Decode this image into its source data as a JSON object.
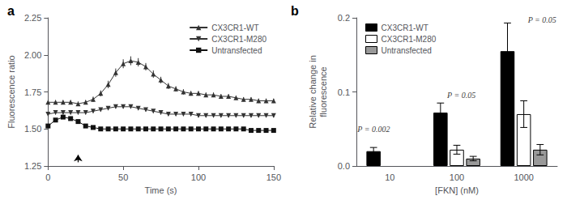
{
  "chart_data": [
    {
      "type": "line",
      "title": "a",
      "xlabel": "Time (s)",
      "ylabel": "Fluorescence ratio",
      "xlim": [
        0,
        150
      ],
      "xticks": [
        0,
        50,
        100,
        150
      ],
      "ylim": [
        1.25,
        2.25
      ],
      "yticks": [
        1.25,
        {
          "value": 1.5,
          "label": "1.50"
        },
        1.75,
        {
          "value": 2,
          "label": "2.00"
        },
        2.25
      ],
      "grid": false,
      "legend": "upper right",
      "arrow": {
        "x": 20,
        "y_start": 1.275,
        "y_end": 1.325
      },
      "x": [
        0,
        5,
        10,
        15,
        20,
        25,
        30,
        35,
        40,
        45,
        50,
        55,
        60,
        65,
        70,
        75,
        80,
        85,
        90,
        95,
        100,
        105,
        110,
        115,
        120,
        125,
        130,
        135,
        140,
        145,
        150
      ],
      "series": [
        {
          "name": "CX3CR1-WT",
          "color": "#333333",
          "marker": "triangle",
          "values": [
            1.68,
            1.68,
            1.68,
            1.68,
            1.67,
            1.68,
            1.7,
            1.74,
            1.8,
            1.88,
            1.94,
            1.96,
            1.95,
            1.92,
            1.87,
            1.83,
            1.79,
            1.77,
            1.75,
            1.74,
            1.74,
            1.73,
            1.73,
            1.72,
            1.72,
            1.71,
            1.7,
            1.7,
            1.69,
            1.69,
            1.69
          ],
          "errors": [
            0.015,
            0.015,
            0.015,
            0.015,
            0.015,
            0.015,
            0.018,
            0.02,
            0.025,
            0.028,
            0.03,
            0.03,
            0.028,
            0.025,
            0.025,
            0.022,
            0.02,
            0.018,
            0.018,
            0.016,
            0.016,
            0.016,
            0.016,
            0.015,
            0.015,
            0.015,
            0.015,
            0.015,
            0.015,
            0.015,
            0.015
          ]
        },
        {
          "name": "CX3CR1-M280",
          "color": "#333333",
          "marker": "triangle_down",
          "values": [
            1.6,
            1.61,
            1.61,
            1.61,
            1.61,
            1.61,
            1.62,
            1.63,
            1.64,
            1.65,
            1.65,
            1.65,
            1.64,
            1.63,
            1.62,
            1.61,
            1.6,
            1.6,
            1.6,
            1.6,
            1.59,
            1.59,
            1.59,
            1.59,
            1.59,
            1.59,
            1.59,
            1.59,
            1.59,
            1.59,
            1.59
          ],
          "errors": [
            0.012,
            0.012,
            0.012,
            0.012,
            0.012,
            0.012,
            0.012,
            0.012,
            0.012,
            0.012,
            0.012,
            0.012,
            0.012,
            0.012,
            0.012,
            0.012,
            0.012,
            0.012,
            0.012,
            0.012,
            0.012,
            0.012,
            0.012,
            0.012,
            0.012,
            0.012,
            0.012,
            0.012,
            0.012,
            0.012,
            0.012
          ]
        },
        {
          "name": "Untransfected",
          "color": "#111111",
          "marker": "square",
          "values": [
            1.52,
            1.56,
            1.58,
            1.57,
            1.55,
            1.52,
            1.51,
            1.5,
            1.5,
            1.5,
            1.5,
            1.5,
            1.5,
            1.5,
            1.5,
            1.5,
            1.5,
            1.5,
            1.5,
            1.5,
            1.5,
            1.5,
            1.5,
            1.5,
            1.5,
            1.5,
            1.5,
            1.49,
            1.49,
            1.49,
            1.49
          ],
          "errors": [
            0.008,
            0.008,
            0.008,
            0.008,
            0.008,
            0.008,
            0.008,
            0.008,
            0.008,
            0.008,
            0.008,
            0.008,
            0.008,
            0.008,
            0.008,
            0.008,
            0.008,
            0.008,
            0.008,
            0.008,
            0.008,
            0.008,
            0.008,
            0.008,
            0.008,
            0.008,
            0.008,
            0.008,
            0.008,
            0.008,
            0.008
          ]
        }
      ]
    },
    {
      "type": "bar",
      "title": "b",
      "xlabel": "[FKN] (nM)",
      "ylabel": "Relative change in\nfluorescence",
      "categories": [
        "10",
        "100",
        "1000"
      ],
      "ylim": [
        0,
        0.2
      ],
      "yticks": [
        {
          "value": 0,
          "label": "0.0"
        },
        0.1,
        0.2
      ],
      "grid": false,
      "legend": "upper left",
      "series": [
        {
          "name": "CX3CR1-WT",
          "color": "#000000",
          "values": [
            0.02,
            0.072,
            0.155
          ],
          "errors": [
            0.005,
            0.013,
            0.038
          ]
        },
        {
          "name": "CX3CR1-M280",
          "color": "#ffffff",
          "values": [
            null,
            0.022,
            0.07
          ],
          "errors": [
            null,
            0.006,
            0.018
          ]
        },
        {
          "name": "Untransfected",
          "color": "#999999",
          "values": [
            null,
            0.01,
            0.022
          ],
          "errors": [
            null,
            0.003,
            0.007
          ]
        }
      ],
      "annotations": [
        {
          "text": "P = 0.002",
          "category": "10",
          "y": 0.05
        },
        {
          "text": "P = 0.05",
          "category": "100",
          "y": 0.096
        },
        {
          "text": "P = 0.05",
          "category": "1000",
          "y": 0.197
        }
      ]
    }
  ]
}
